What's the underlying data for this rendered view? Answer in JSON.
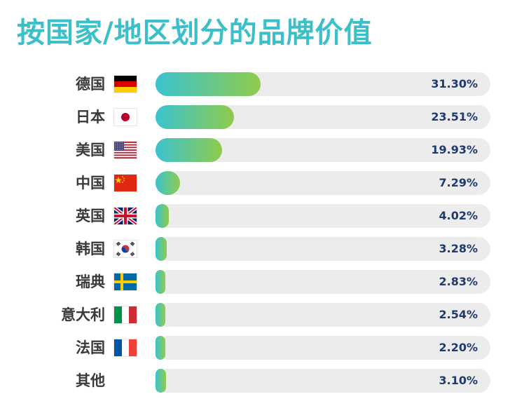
{
  "chart_data": {
    "type": "bar",
    "orientation": "horizontal",
    "title": "按国家/地区划分的品牌价值",
    "xlabel": "",
    "ylabel": "",
    "xlim": [
      0,
      100
    ],
    "grid": false,
    "legend": "none",
    "categories": [
      "德国",
      "日本",
      "美国",
      "中国",
      "英国",
      "韩国",
      "瑞典",
      "意大利",
      "法国",
      "其他"
    ],
    "values": [
      31.3,
      23.51,
      19.93,
      7.29,
      4.02,
      3.28,
      2.83,
      2.54,
      2.2,
      3.1
    ],
    "value_labels": [
      "31.30%",
      "23.51%",
      "19.93%",
      "7.29%",
      "4.02%",
      "3.28%",
      "2.83%",
      "2.54%",
      "2.20%",
      "3.10%"
    ],
    "flags": [
      "germany-flag-icon",
      "japan-flag-icon",
      "usa-flag-icon",
      "china-flag-icon",
      "uk-flag-icon",
      "korea-flag-icon",
      "sweden-flag-icon",
      "italy-flag-icon",
      "france-flag-icon",
      ""
    ],
    "colors": {
      "title": "#3bbfc9",
      "bar_start": "#3bc3cf",
      "bar_end": "#8fcb4c",
      "track": "#ececec",
      "value_text": "#1e3a6e"
    }
  }
}
